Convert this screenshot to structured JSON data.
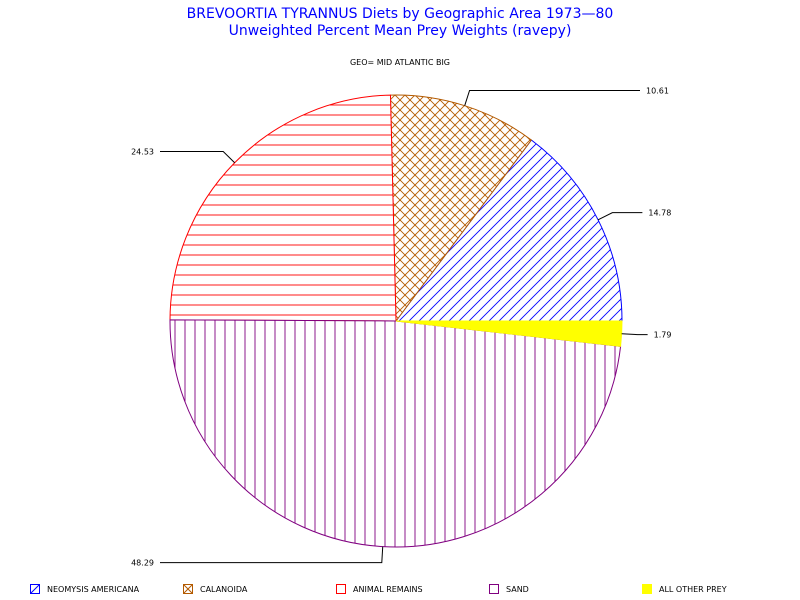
{
  "chart_data": {
    "type": "pie",
    "title": "BREVOORTIA TYRANNUS Diets by Geographic Area 1973—80",
    "subtitle": "Unweighted Percent Mean Prey Weights (ravepy)",
    "group_label": "GEO= MID ATLANTIC BIG",
    "slices": [
      {
        "label": "NEOMYSIS AMERICANA",
        "value": 14.78,
        "value_label": "14.78",
        "color": "#0000ff",
        "pattern": "diagonal"
      },
      {
        "label": "CALANOIDA",
        "value": 10.61,
        "value_label": "10.61",
        "color": "#b35a00",
        "pattern": "crosshatch"
      },
      {
        "label": "ANIMAL REMAINS",
        "value": 24.53,
        "value_label": "24.53",
        "color": "#ff0000",
        "pattern": "horizontal"
      },
      {
        "label": "SAND",
        "value": 48.29,
        "value_label": "48.29",
        "color": "#800080",
        "pattern": "vertical"
      },
      {
        "label": "ALL OTHER PREY",
        "value": 1.79,
        "value_label": "1.79",
        "color": "#ffff00",
        "pattern": "solid"
      }
    ],
    "legend_position": "bottom"
  }
}
